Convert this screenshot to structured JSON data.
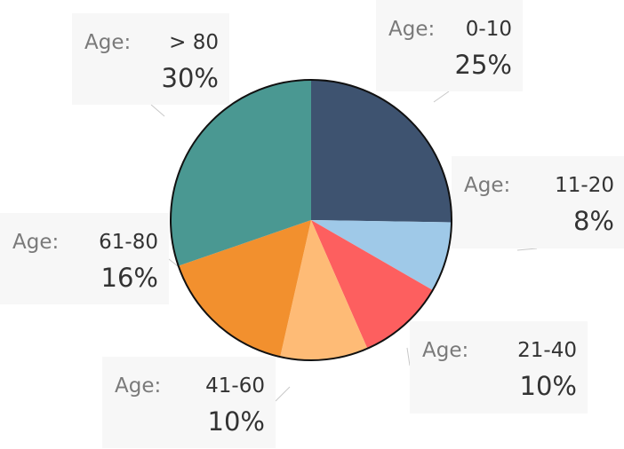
{
  "chart_data": {
    "type": "pie",
    "title": "",
    "label_prefix": "Age:",
    "categories": [
      "0-10",
      "11-20",
      "21-40",
      "41-60",
      "61-80",
      "> 80"
    ],
    "values": [
      25,
      8,
      10,
      10,
      16,
      30
    ],
    "value_labels": [
      "25%",
      "8%",
      "10%",
      "10%",
      "16%",
      "30%"
    ],
    "colors": [
      "#3e5370",
      "#9fc9e8",
      "#fd5f5f",
      "#febb76",
      "#f2902e",
      "#4a9892"
    ],
    "start_angle_deg": 0,
    "direction": "clockwise",
    "legend": "none"
  }
}
